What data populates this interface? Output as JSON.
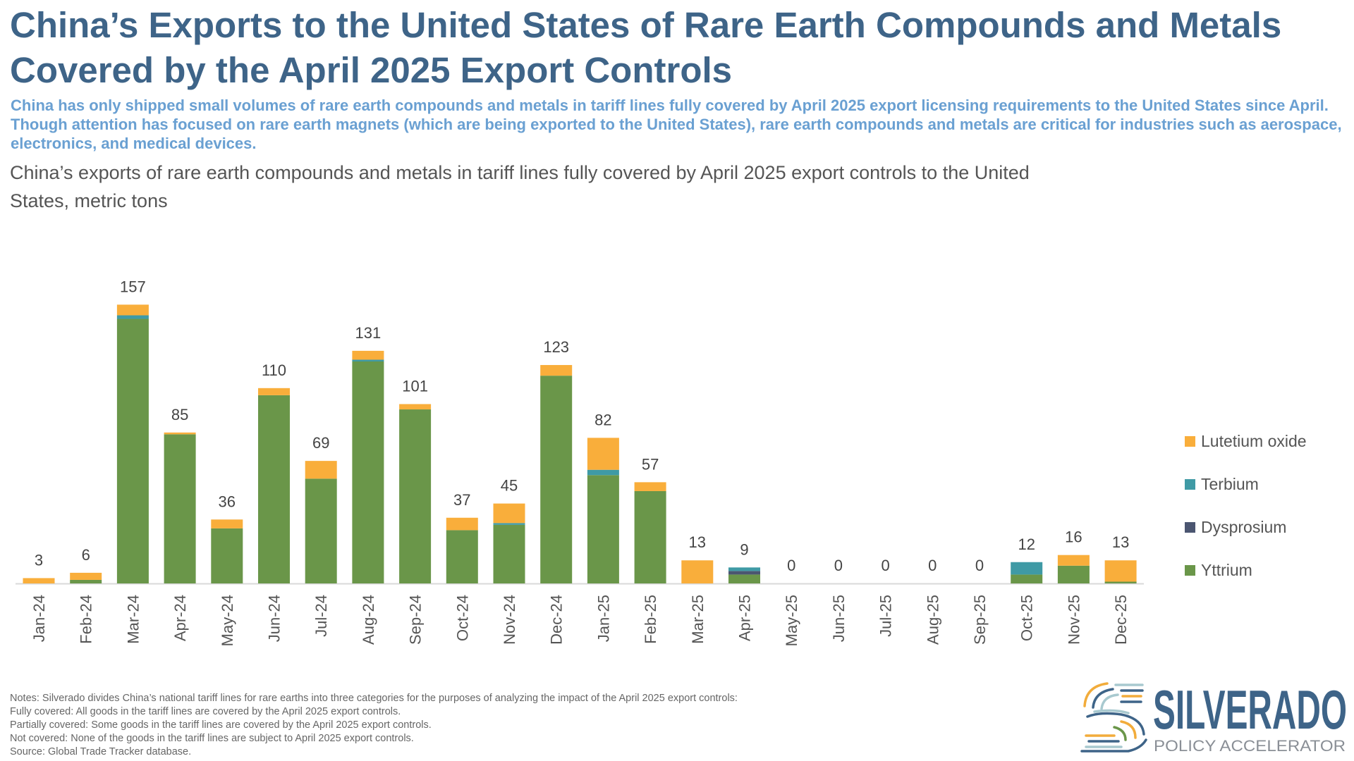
{
  "title": "China’s Exports to the United States of Rare Earth Compounds and Metals Covered by the April 2025 Export Controls",
  "subtitle": "China has only shipped small volumes of rare earth compounds and metals in tariff lines fully covered by April 2025 export licensing requirements to the United States since April. Though attention has focused on rare earth magnets (which are being exported to the United States), rare earth compounds and metals are critical for industries such as aerospace, electronics, and medical devices.",
  "notes": [
    "Notes: Silverado divides China’s national tariff lines for rare earths into three categories for the purposes of analyzing the impact of the April 2025 export controls:",
    "Fully covered: All goods in the tariff lines are covered by the April 2025 export controls.",
    "Partially covered: Some goods in the tariff lines are covered by the April 2025 export controls.",
    "Not covered: None of the goods in the tariff lines are subject to April 2025 export controls.",
    "Source: Global Trade Tracker database."
  ],
  "logo": {
    "name": "SILVERADO",
    "tagline": "POLICY ACCELERATOR"
  },
  "chart_data": {
    "type": "bar",
    "stacked": true,
    "title": "China’s exports of rare earth compounds and metals in tariff lines fully covered by April 2025 export controls to the United States, metric tons",
    "xlabel": "",
    "ylabel": "",
    "ylim": [
      0,
      160
    ],
    "grid": false,
    "legend_position": "right",
    "categories": [
      "Jan-24",
      "Feb-24",
      "Mar-24",
      "Apr-24",
      "May-24",
      "Jun-24",
      "Jul-24",
      "Aug-24",
      "Sep-24",
      "Oct-24",
      "Nov-24",
      "Dec-24",
      "Jan-25",
      "Feb-25",
      "Mar-25",
      "Apr-25",
      "May-25",
      "Jun-25",
      "Jul-25",
      "Aug-25",
      "Sep-25",
      "Oct-25",
      "Nov-25",
      "Dec-25"
    ],
    "totals": [
      3,
      6,
      157,
      85,
      36,
      110,
      69,
      131,
      101,
      37,
      45,
      123,
      82,
      57,
      13,
      9,
      0,
      0,
      0,
      0,
      0,
      12,
      16,
      13
    ],
    "series": [
      {
        "name": "Yttrium",
        "color": "#6a9649",
        "values": [
          0,
          2,
          149,
          84,
          31,
          106,
          59,
          125,
          98,
          30,
          33,
          117,
          61,
          52,
          0,
          5,
          0,
          0,
          0,
          0,
          0,
          5,
          10,
          1
        ]
      },
      {
        "name": "Dysprosium",
        "color": "#4b5671",
        "values": [
          0,
          0,
          0,
          0,
          0,
          0,
          0,
          0,
          0,
          0,
          0,
          0,
          0,
          0,
          0,
          2,
          0,
          0,
          0,
          0,
          0,
          0,
          0,
          0
        ]
      },
      {
        "name": "Terbium",
        "color": "#3f9aa5",
        "values": [
          0,
          0,
          2,
          0,
          0,
          0,
          0,
          1,
          0,
          0,
          1,
          0,
          3,
          0,
          0,
          2,
          0,
          0,
          0,
          0,
          0,
          7,
          0,
          0
        ]
      },
      {
        "name": "Lutetium oxide",
        "color": "#f9ae3b",
        "values": [
          3,
          4,
          6,
          1,
          5,
          4,
          10,
          5,
          3,
          7,
          11,
          6,
          18,
          5,
          13,
          0,
          0,
          0,
          0,
          0,
          0,
          0,
          6,
          12
        ]
      }
    ],
    "legend_order": [
      "Lutetium oxide",
      "Terbium",
      "Dysprosium",
      "Yttrium"
    ]
  }
}
